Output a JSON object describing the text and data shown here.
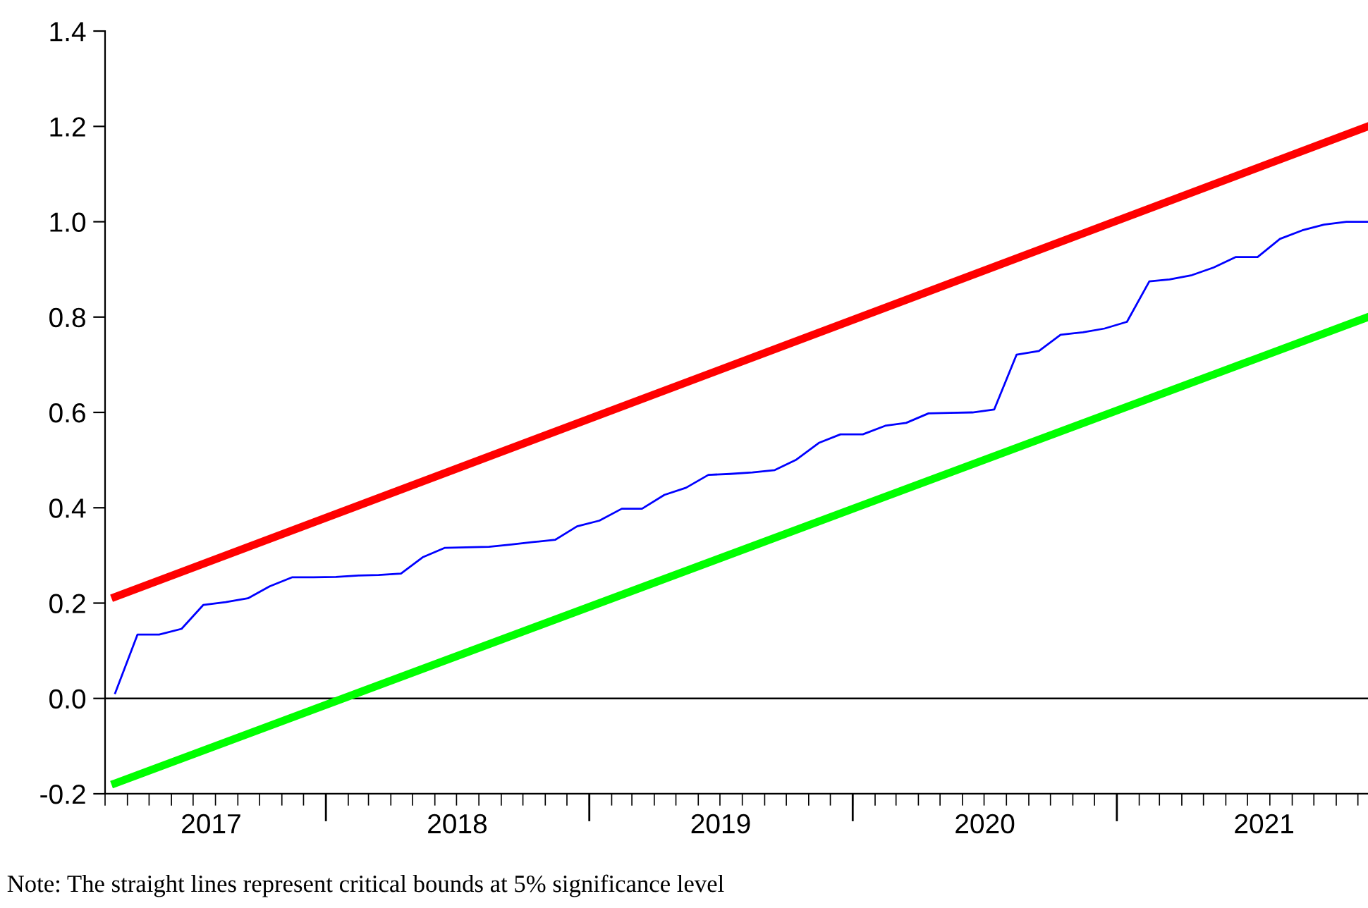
{
  "chart_data": {
    "type": "line",
    "x": [
      "2017-03-15",
      "2017-04-15",
      "2017-05-15",
      "2017-06-15",
      "2017-07-15",
      "2017-08-15",
      "2017-09-15",
      "2017-10-15",
      "2017-11-15",
      "2017-12-15",
      "2018-01-15",
      "2018-02-15",
      "2018-03-15",
      "2018-04-15",
      "2018-05-15",
      "2018-06-15",
      "2018-07-15",
      "2018-08-15",
      "2018-09-15",
      "2018-10-15",
      "2018-11-15",
      "2018-12-15",
      "2019-01-15",
      "2019-02-15",
      "2019-03-15",
      "2019-04-15",
      "2019-05-15",
      "2019-06-15",
      "2019-07-15",
      "2019-08-15",
      "2019-09-15",
      "2019-10-15",
      "2019-11-15",
      "2019-12-15",
      "2020-01-15",
      "2020-02-15",
      "2020-03-15",
      "2020-04-15",
      "2020-05-15",
      "2020-06-15",
      "2020-07-15",
      "2020-08-15",
      "2020-09-15",
      "2020-10-15",
      "2020-11-15",
      "2020-12-15",
      "2021-01-15",
      "2021-02-15",
      "2021-03-15",
      "2021-04-15",
      "2021-05-15",
      "2021-06-15",
      "2021-07-15",
      "2021-08-15",
      "2021-09-15",
      "2021-10-15",
      "2021-11-15",
      "2021-12-15"
    ],
    "series": [
      {
        "color": "#0000ff",
        "values": [
          0.011,
          0.134,
          0.134,
          0.146,
          0.196,
          0.202,
          0.21,
          0.235,
          0.254,
          0.254,
          0.255,
          0.258,
          0.259,
          0.262,
          0.296,
          0.316,
          0.317,
          0.318,
          0.323,
          0.328,
          0.333,
          0.361,
          0.373,
          0.398,
          0.398,
          0.427,
          0.442,
          0.469,
          0.471,
          0.474,
          0.479,
          0.501,
          0.536,
          0.554,
          0.554,
          0.572,
          0.578,
          0.598,
          0.599,
          0.6,
          0.606,
          0.721,
          0.729,
          0.763,
          0.768,
          0.776,
          0.79,
          0.875,
          0.879,
          0.888,
          0.904,
          0.926,
          0.926,
          0.964,
          0.982,
          0.994,
          1.0,
          1.0
        ]
      },
      {
        "color": "#ff0000",
        "x": [
          "2017-03-15",
          "2021-12-15"
        ],
        "values": [
          0.213,
          1.2
        ]
      },
      {
        "color": "#00ff00",
        "x": [
          "2017-03-15",
          "2021-12-15"
        ],
        "values": [
          -0.178,
          0.8
        ]
      }
    ],
    "xlim": [
      "2017-03-01",
      "2021-12-15"
    ],
    "xticks": [
      {
        "value": "2017-07-26",
        "label": "2017"
      },
      {
        "value": "2018-01-01",
        "label": null
      },
      {
        "value": "2018-07-02",
        "label": "2018"
      },
      {
        "value": "2019-01-01",
        "label": null
      },
      {
        "value": "2019-07-02",
        "label": "2019"
      },
      {
        "value": "2020-01-01",
        "label": null
      },
      {
        "value": "2020-07-02",
        "label": "2020"
      },
      {
        "value": "2021-01-01",
        "label": null
      },
      {
        "value": "2021-07-24",
        "label": "2021"
      }
    ],
    "ylim": [
      -0.2,
      1.4
    ],
    "yticks": [
      -0.2,
      {
        "value": 0,
        "label": "0.0"
      },
      0.2,
      0.4,
      0.6,
      0.8,
      {
        "value": 1,
        "label": "1.0"
      },
      1.2,
      1.4
    ],
    "ref_lines": [
      {
        "axis": "y",
        "value": 0,
        "color": "#000000"
      }
    ],
    "grid": false,
    "legend": false,
    "annotations": [
      "Note: The straight lines represent critical bounds at 5% significance level"
    ]
  }
}
